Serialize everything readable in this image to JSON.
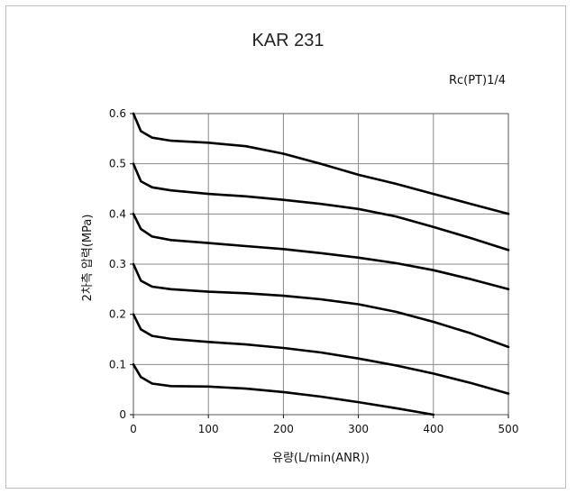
{
  "chart_data": {
    "type": "line",
    "title": "KAR 231",
    "subtitle": "Rc(PT)1/4",
    "xlabel": "유량(L/min(ANR))",
    "ylabel": "2차측 압력(MPa)",
    "xlim": [
      0,
      500
    ],
    "ylim": [
      0,
      0.6
    ],
    "x_ticks": [
      "0",
      "100",
      "200",
      "300",
      "400",
      "500"
    ],
    "y_ticks": [
      "0",
      "0.1",
      "0.2",
      "0.3",
      "0.4",
      "0.5",
      "0.6"
    ],
    "grid": true,
    "series": [
      {
        "x": [
          0,
          10,
          25,
          50,
          100,
          150,
          200,
          250,
          300,
          350,
          400,
          450,
          500
        ],
        "y": [
          0.6,
          0.565,
          0.552,
          0.546,
          0.542,
          0.535,
          0.52,
          0.5,
          0.478,
          0.46,
          0.44,
          0.42,
          0.4
        ]
      },
      {
        "x": [
          0,
          10,
          25,
          50,
          100,
          150,
          200,
          250,
          300,
          350,
          400,
          450,
          500
        ],
        "y": [
          0.5,
          0.465,
          0.453,
          0.447,
          0.44,
          0.435,
          0.428,
          0.42,
          0.41,
          0.395,
          0.374,
          0.352,
          0.328
        ]
      },
      {
        "x": [
          0,
          10,
          25,
          50,
          100,
          150,
          200,
          250,
          300,
          350,
          400,
          450,
          500
        ],
        "y": [
          0.4,
          0.37,
          0.355,
          0.348,
          0.342,
          0.336,
          0.33,
          0.322,
          0.313,
          0.302,
          0.288,
          0.27,
          0.25
        ]
      },
      {
        "x": [
          0,
          10,
          25,
          50,
          100,
          150,
          200,
          250,
          300,
          350,
          400,
          450,
          500
        ],
        "y": [
          0.3,
          0.267,
          0.255,
          0.25,
          0.245,
          0.242,
          0.237,
          0.23,
          0.22,
          0.205,
          0.185,
          0.162,
          0.135
        ]
      },
      {
        "x": [
          0,
          10,
          25,
          50,
          100,
          150,
          200,
          250,
          300,
          350,
          400,
          450,
          500
        ],
        "y": [
          0.2,
          0.17,
          0.157,
          0.151,
          0.145,
          0.14,
          0.133,
          0.124,
          0.112,
          0.098,
          0.082,
          0.063,
          0.042
        ]
      },
      {
        "x": [
          0,
          10,
          25,
          50,
          100,
          150,
          200,
          250,
          300,
          350,
          400
        ],
        "y": [
          0.1,
          0.075,
          0.062,
          0.057,
          0.056,
          0.052,
          0.045,
          0.036,
          0.025,
          0.013,
          0.0
        ]
      }
    ],
    "line_color": "#000000",
    "grid_color": "#888888"
  }
}
